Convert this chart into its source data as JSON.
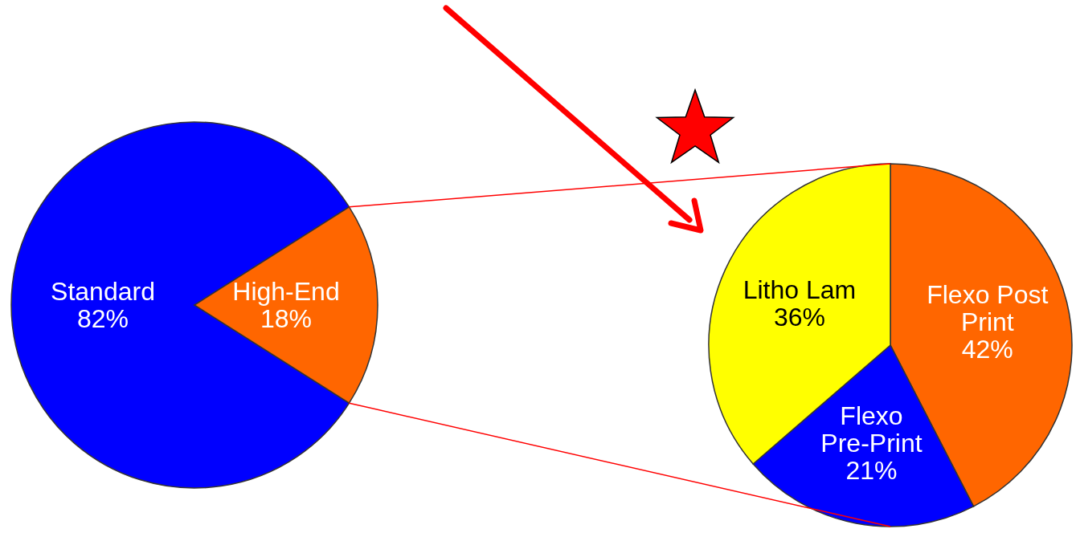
{
  "chart_data": [
    {
      "type": "pie",
      "categories": [
        "Standard",
        "High-End"
      ],
      "values": [
        82,
        18
      ],
      "value_labels": [
        "82%",
        "18%"
      ],
      "colors": [
        "#0000ff",
        "#ff6600"
      ]
    },
    {
      "type": "pie",
      "categories": [
        "Flexo Post Print",
        "Flexo Pre-Print",
        "Litho Lam"
      ],
      "values": [
        42,
        21,
        36
      ],
      "value_labels": [
        "42%",
        "21%",
        "36%"
      ],
      "colors": [
        "#ff6600",
        "#0000ff",
        "#ffff00"
      ]
    }
  ]
}
